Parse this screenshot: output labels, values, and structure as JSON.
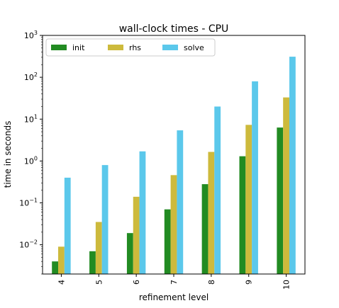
{
  "chart_data": {
    "type": "bar",
    "title": "wall-clock times - CPU",
    "xlabel": "refinement level",
    "ylabel": "time in seconds",
    "yscale": "log",
    "ylim": [
      0.002,
      1000
    ],
    "y_ticks": [
      {
        "value": 0.01,
        "base": "10",
        "exp": "−2"
      },
      {
        "value": 0.1,
        "base": "10",
        "exp": "−1"
      },
      {
        "value": 1,
        "base": "10",
        "exp": "0"
      },
      {
        "value": 10,
        "base": "10",
        "exp": "1"
      },
      {
        "value": 100,
        "base": "10",
        "exp": "2"
      },
      {
        "value": 1000,
        "base": "10",
        "exp": "3"
      }
    ],
    "categories": [
      "4",
      "5",
      "6",
      "7",
      "8",
      "9",
      "10"
    ],
    "series": [
      {
        "name": "init",
        "color": "#228B22",
        "values": [
          0.004,
          0.007,
          0.019,
          0.07,
          0.28,
          1.3,
          6.3
        ]
      },
      {
        "name": "rhs",
        "color": "#CDBA3C",
        "values": [
          0.009,
          0.035,
          0.14,
          0.46,
          1.65,
          7.3,
          33
        ]
      },
      {
        "name": "solve",
        "color": "#5BC8EB",
        "values": [
          0.4,
          0.8,
          1.7,
          5.4,
          20,
          80,
          310
        ]
      }
    ],
    "legend": {
      "position": "top-left",
      "ncol": 3
    },
    "grid": false
  }
}
